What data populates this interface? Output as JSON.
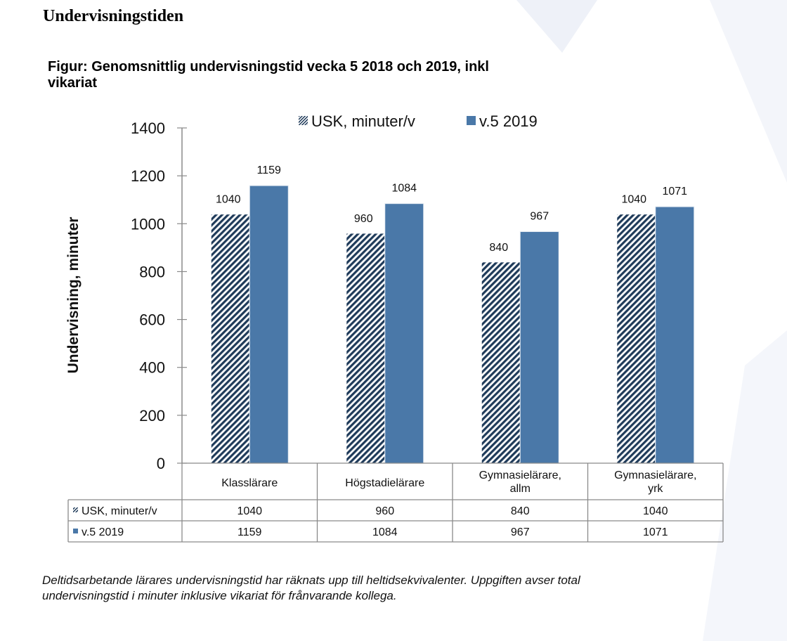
{
  "page": {
    "heading": "Undervisningstiden",
    "figure_title_line1": "Figur: Genomsnittlig undervisningstid vecka 5 2018 och 2019, inkl",
    "figure_title_line2": "vikariat",
    "footnote_line1": "Deltidsarbetande lärares undervisningstid har räknats upp till heltidsekvivalenter. Uppgiften avser total",
    "footnote_line2": "undervisningstid i minuter inklusive vikariat för frånvarande kollega."
  },
  "chart_data": {
    "type": "bar",
    "title": "Figur: Genomsnittlig undervisningstid vecka 5 2018 och 2019, inkl vikariat",
    "xlabel": "",
    "ylabel": "Undervisning, minuter",
    "ylim": [
      0,
      1400
    ],
    "yticks": [
      0,
      200,
      400,
      600,
      800,
      1000,
      1200,
      1400
    ],
    "grid": false,
    "legend_position": "top",
    "categories": [
      [
        "Klasslärare"
      ],
      [
        "Högstadielärare"
      ],
      [
        "Gymnasielärare,",
        "allm"
      ],
      [
        "Gymnasielärare,",
        "yrk"
      ]
    ],
    "series": [
      {
        "name": "USK, minuter/v",
        "values": [
          1040,
          960,
          840,
          1040
        ],
        "style": "hatched",
        "color": "#1f3b5a"
      },
      {
        "name": "v.5 2019",
        "values": [
          1159,
          1084,
          967,
          1071
        ],
        "style": "solid",
        "color": "#4a78a8"
      }
    ],
    "data_table": true
  }
}
